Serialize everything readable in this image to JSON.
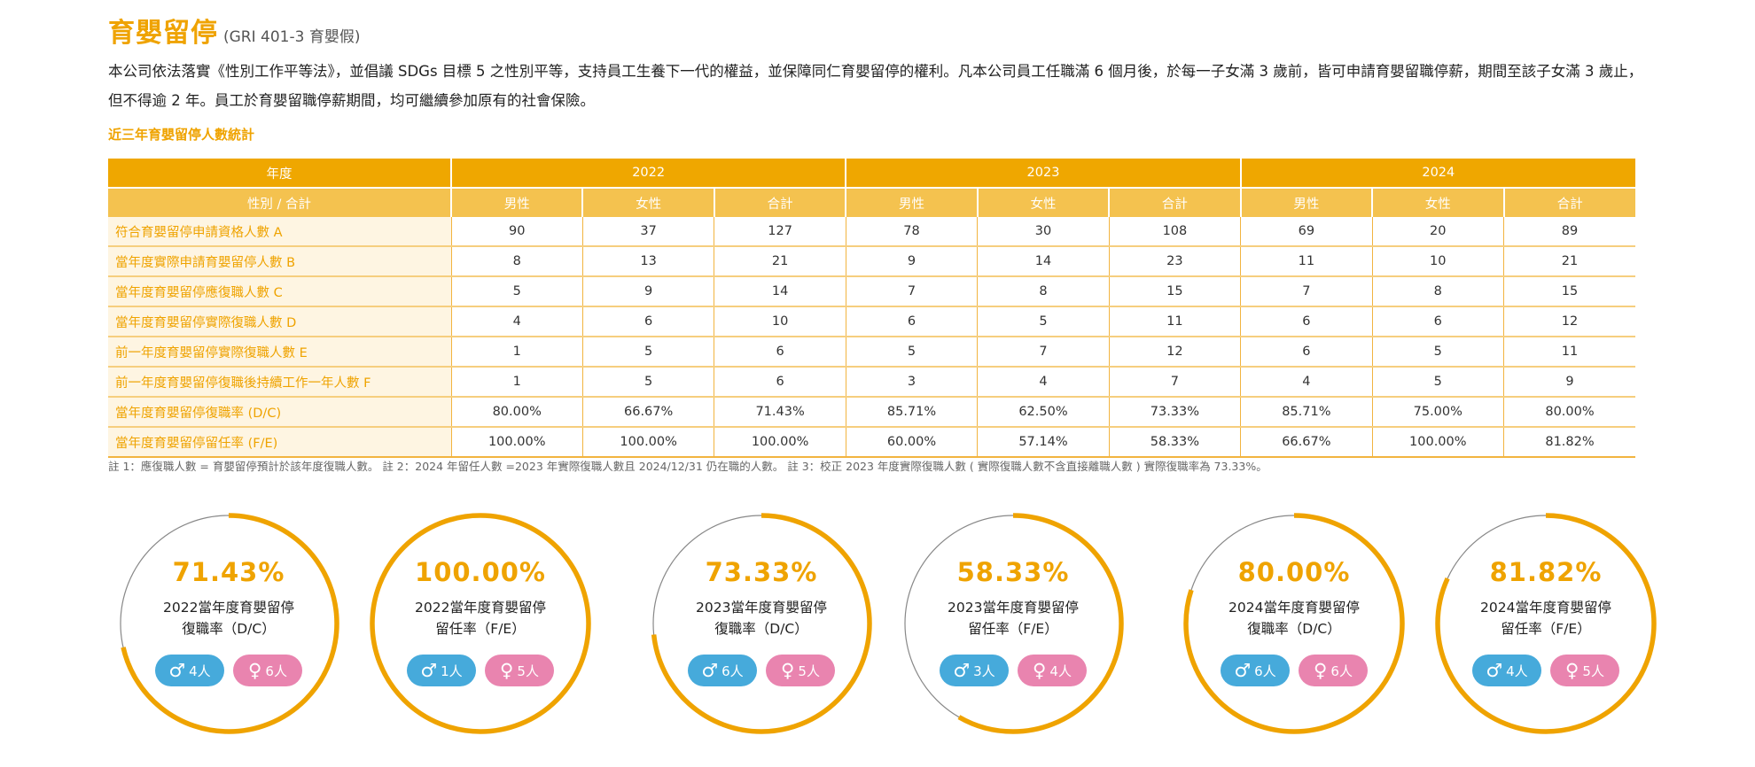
{
  "header": {
    "title": "育嬰留停",
    "subtitle": "(GRI 401-3 育嬰假)"
  },
  "intro": "本公司依法落實《性別工作平等法》，並倡議 SDGs 目標 5 之性別平等，支持員工生養下一代的權益，並保障同仁育嬰留停的權利。凡本公司員工任職滿 6 個月後，於每一子女滿 3 歲前，皆可申請育嬰留職停薪，期間至該子女滿 3 歲止，但不得逾 2 年。員工於育嬰留職停薪期間，均可繼續參加原有的社會保險。",
  "table_title": "近三年育嬰留停人數統計",
  "table": {
    "year_header": "年度",
    "years": [
      "2022",
      "2023",
      "2024"
    ],
    "gender_header": "性別 / 合計",
    "sub_cols": [
      "男性",
      "女性",
      "合計"
    ],
    "rows": [
      {
        "label": "符合育嬰留停申請資格人數 A",
        "values": [
          "90",
          "37",
          "127",
          "78",
          "30",
          "108",
          "69",
          "20",
          "89"
        ]
      },
      {
        "label": "當年度實際申請育嬰留停人數 B",
        "values": [
          "8",
          "13",
          "21",
          "9",
          "14",
          "23",
          "11",
          "10",
          "21"
        ]
      },
      {
        "label": "當年度育嬰留停應復職人數 C",
        "values": [
          "5",
          "9",
          "14",
          "7",
          "8",
          "15",
          "7",
          "8",
          "15"
        ]
      },
      {
        "label": "當年度育嬰留停實際復職人數 D",
        "values": [
          "4",
          "6",
          "10",
          "6",
          "5",
          "11",
          "6",
          "6",
          "12"
        ]
      },
      {
        "label": "前一年度育嬰留停實際復職人數 E",
        "values": [
          "1",
          "5",
          "6",
          "5",
          "7",
          "12",
          "6",
          "5",
          "11"
        ]
      },
      {
        "label": "前一年度育嬰留停復職後持續工作一年人數 F",
        "values": [
          "1",
          "5",
          "6",
          "3",
          "4",
          "7",
          "4",
          "5",
          "9"
        ]
      },
      {
        "label": "當年度育嬰留停復職率 (D/C)",
        "values": [
          "80.00%",
          "66.67%",
          "71.43%",
          "85.71%",
          "62.50%",
          "73.33%",
          "85.71%",
          "75.00%",
          "80.00%"
        ]
      },
      {
        "label": "當年度育嬰留停留任率 (F/E)",
        "values": [
          "100.00%",
          "100.00%",
          "100.00%",
          "60.00%",
          "57.14%",
          "58.33%",
          "66.67%",
          "100.00%",
          "81.82%"
        ]
      }
    ]
  },
  "notes": "註 1：應復職人數 = 育嬰留停預計於該年度復職人數。 註 2：2024 年留任人數 =2023 年實際復職人數且 2024/12/31 仍在職的人數。 註 3：校正 2023 年度實際復職人數 ( 實際復職人數不含直接離職人數 ) 實際復職率為 73.33%。",
  "colors": {
    "accent": "#EFA300",
    "male": "#46AADB",
    "female": "#E984AF",
    "track": "#888888"
  },
  "icons": {
    "male": "male-symbol",
    "female": "female-symbol"
  },
  "circles": [
    {
      "percent": "71.43%",
      "value": 71.43,
      "line1": "2022當年度育嬰留停",
      "line2": "復職率（D/C）",
      "male": "4人",
      "female": "6人"
    },
    {
      "percent": "100.00%",
      "value": 100,
      "line1": "2022當年度育嬰留停",
      "line2": "留任率（F/E）",
      "male": "1人",
      "female": "5人"
    },
    {
      "percent": "73.33%",
      "value": 73.33,
      "line1": "2023當年度育嬰留停",
      "line2": "復職率（D/C）",
      "male": "6人",
      "female": "5人"
    },
    {
      "percent": "58.33%",
      "value": 58.33,
      "line1": "2023當年度育嬰留停",
      "line2": "留任率（F/E）",
      "male": "3人",
      "female": "4人"
    },
    {
      "percent": "80.00%",
      "value": 80,
      "line1": "2024當年度育嬰留停",
      "line2": "復職率（D/C）",
      "male": "6人",
      "female": "6人"
    },
    {
      "percent": "81.82%",
      "value": 81.82,
      "line1": "2024當年度育嬰留停",
      "line2": "留任率（F/E）",
      "male": "4人",
      "female": "5人"
    }
  ]
}
